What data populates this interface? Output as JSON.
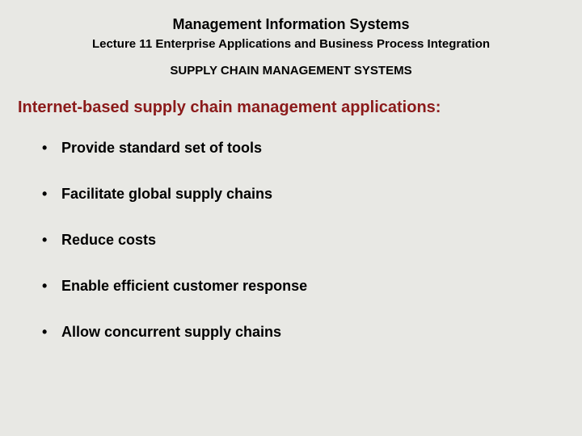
{
  "header": {
    "course_title": "Management Information Systems",
    "lecture_title": "Lecture 11 Enterprise Applications and Business Process Integration",
    "section_heading": "SUPPLY CHAIN MANAGEMENT SYSTEMS"
  },
  "content": {
    "topic_heading": "Internet-based supply chain management applications:",
    "topic_heading_color": "#8b1a1a",
    "bullets": [
      "Provide standard set of tools",
      "Facilitate global supply chains",
      "Reduce costs",
      "Enable efficient customer response",
      "Allow concurrent supply chains"
    ]
  },
  "styling": {
    "background_color": "#e8e8e4",
    "text_color": "#000000",
    "accent_color": "#8b1a1a",
    "font_family": "Arial",
    "course_title_fontsize": 18,
    "lecture_title_fontsize": 15,
    "section_heading_fontsize": 15,
    "topic_heading_fontsize": 20,
    "bullet_fontsize": 18
  }
}
